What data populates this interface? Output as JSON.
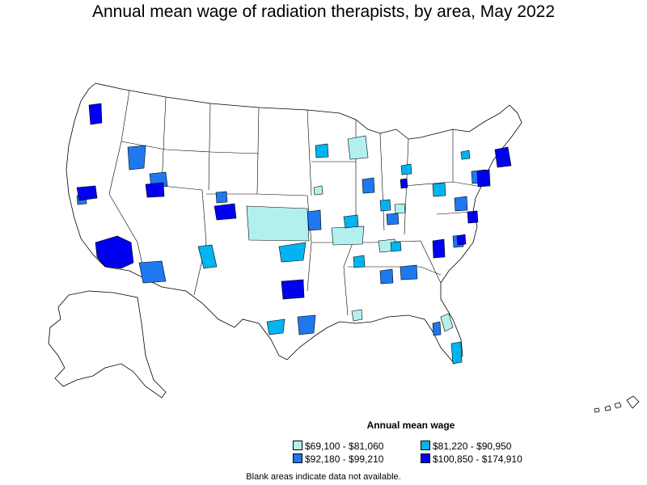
{
  "title": "Annual mean wage of radiation therapists, by area, May 2022",
  "legend": {
    "title": "Annual mean wage",
    "items": [
      {
        "label": "$69,100 - $81,060",
        "color": "#b2f0f0"
      },
      {
        "label": "$81,220 - $90,950",
        "color": "#00b4f0"
      },
      {
        "label": "$92,180 - $99,210",
        "color": "#1e78f0"
      },
      {
        "label": "$100,850 - $174,910",
        "color": "#0000f0"
      }
    ]
  },
  "note": "Blank areas indicate data not available."
}
